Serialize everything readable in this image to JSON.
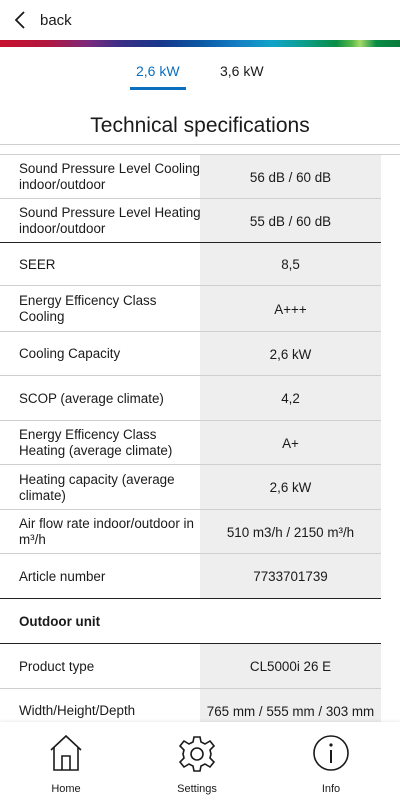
{
  "header": {
    "back_label": "back"
  },
  "tabs": [
    {
      "label": "2,6 kW"
    },
    {
      "label": "3,6 kW"
    }
  ],
  "section_title": "Technical specifications",
  "specs": [
    {
      "label": "Sound Pressure Level Cooling indoor/outdoor",
      "value": "56 dB / 60 dB"
    },
    {
      "label": "Sound Pressure Level Heating indoor/outdoor",
      "value": "55 dB / 60 dB"
    },
    {
      "label": "SEER",
      "value": "8,5"
    },
    {
      "label": "Energy Efficency Class Cooling",
      "value": "A+++"
    },
    {
      "label": "Cooling Capacity",
      "value": "2,6 kW"
    },
    {
      "label": "SCOP (average climate)",
      "value": "4,2"
    },
    {
      "label": "Energy Efficency Class Heating (average climate)",
      "value": "A+"
    },
    {
      "label": "Heating capacity (average climate)",
      "value": "2,6 kW"
    },
    {
      "label": "Air flow rate indoor/outdoor in m³/h",
      "value": "510 m3/h / 2150 m³/h"
    },
    {
      "label": "Article number",
      "value": "7733701739"
    },
    {
      "label": "Outdoor unit",
      "value": ""
    },
    {
      "label": "Product type",
      "value": "CL5000i 26 E"
    },
    {
      "label": "Width/Height/Depth",
      "value": "765 mm / 555 mm / 303 mm"
    }
  ],
  "bottom_nav": [
    {
      "label": "Home",
      "icon": "home-icon"
    },
    {
      "label": "Settings",
      "icon": "gear-icon"
    },
    {
      "label": "Info",
      "icon": "info-icon"
    }
  ],
  "colors": {
    "accent": "#0b6fbf",
    "value_bg": "#eeeeee"
  }
}
